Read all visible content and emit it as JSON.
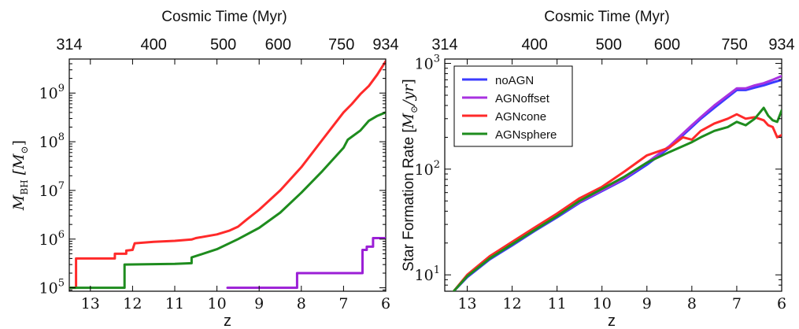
{
  "chart_data": [
    {
      "type": "line",
      "top_axis_label": "Cosmic Time (Myr)",
      "top_ticks": [
        {
          "label": "314",
          "z": 13.5
        },
        {
          "label": "400",
          "z": 11.5
        },
        {
          "label": "500",
          "z": 9.85
        },
        {
          "label": "600",
          "z": 8.55
        },
        {
          "label": "750",
          "z": 7.05
        },
        {
          "label": "934",
          "z": 6.0
        }
      ],
      "xlabel": "z",
      "ylabel_parts": [
        "M",
        "BH",
        " [M",
        "⊙",
        "]"
      ],
      "x_ticks": [
        "13",
        "12",
        "11",
        "10",
        "9",
        "8",
        "7",
        "6"
      ],
      "x_tick_values": [
        13,
        12,
        11,
        10,
        9,
        8,
        7,
        6
      ],
      "xlim": [
        13.5,
        6.0
      ],
      "y_scale": "log",
      "ylim": [
        85000,
        5000000000
      ],
      "y_ticks": [
        {
          "base": "10",
          "exp": "5",
          "value": 100000
        },
        {
          "base": "10",
          "exp": "6",
          "value": 1000000
        },
        {
          "base": "10",
          "exp": "7",
          "value": 10000000
        },
        {
          "base": "10",
          "exp": "8",
          "value": 100000000
        },
        {
          "base": "10",
          "exp": "9",
          "value": 1000000000
        }
      ],
      "series": [
        {
          "color": "#ff2a2a",
          "x": [
            13.5,
            13.34,
            13.34,
            12.42,
            12.42,
            12.15,
            12.15,
            12.0,
            11.95,
            11.5,
            11.0,
            10.6,
            10.5,
            10.0,
            9.7,
            9.5,
            9.3,
            9.0,
            8.5,
            8.0,
            7.5,
            7.0,
            6.8,
            6.6,
            6.4,
            6.2,
            6.0
          ],
          "y": [
            100000,
            100000,
            400000,
            400000,
            500000,
            500000,
            580000,
            600000,
            820000,
            880000,
            920000,
            980000,
            1050000,
            1250000,
            1500000,
            1800000,
            2500000,
            4000000,
            10000000,
            30000000,
            110000000,
            400000000,
            600000000,
            950000000,
            1400000000,
            2400000000,
            4500000000
          ]
        },
        {
          "color": "#1e8c1e",
          "x": [
            13.5,
            12.19,
            12.19,
            11.0,
            10.6,
            10.6,
            10.0,
            9.5,
            9.0,
            8.5,
            8.0,
            7.5,
            7.0,
            6.9,
            6.6,
            6.4,
            6.2,
            6.0
          ],
          "y": [
            100000,
            100000,
            300000,
            310000,
            320000,
            420000,
            620000,
            1000000,
            1700000,
            3500000,
            9000000,
            25000000,
            75000000,
            110000000,
            170000000,
            270000000,
            340000000,
            400000000
          ]
        },
        {
          "color": "#9b1fd6",
          "x": [
            9.75,
            8.1,
            8.1,
            6.55,
            6.55,
            6.45,
            6.45,
            6.3,
            6.3,
            6.0
          ],
          "y": [
            100000,
            100000,
            200000,
            200000,
            600000,
            600000,
            700000,
            700000,
            1050000,
            1050000
          ]
        }
      ]
    },
    {
      "type": "line",
      "top_axis_label": "Cosmic Time (Myr)",
      "top_ticks": [
        {
          "label": "314",
          "z": 13.5
        },
        {
          "label": "400",
          "z": 11.5
        },
        {
          "label": "500",
          "z": 9.85
        },
        {
          "label": "600",
          "z": 8.55
        },
        {
          "label": "750",
          "z": 7.05
        },
        {
          "label": "934",
          "z": 6.0
        }
      ],
      "xlabel": "z",
      "ylabel_parts": [
        "Star Formation Rate [",
        "M",
        "⊙",
        "/yr",
        "]"
      ],
      "x_ticks": [
        "13",
        "12",
        "11",
        "10",
        "9",
        "8",
        "7",
        "6"
      ],
      "x_tick_values": [
        13,
        12,
        11,
        10,
        9,
        8,
        7,
        6
      ],
      "xlim": [
        13.5,
        6.0
      ],
      "y_scale": "log",
      "ylim": [
        7,
        1100
      ],
      "y_ticks": [
        {
          "base": "10",
          "exp": "1",
          "value": 10
        },
        {
          "base": "10",
          "exp": "2",
          "value": 100
        },
        {
          "base": "10",
          "exp": "3",
          "value": 1000
        }
      ],
      "legend_position": "top-left",
      "series": [
        {
          "name": "noAGN",
          "color": "#3b3bff",
          "x": [
            13.3,
            13.0,
            12.5,
            12.0,
            11.5,
            11.0,
            10.5,
            10.0,
            9.5,
            9.0,
            8.5,
            8.0,
            7.8,
            7.5,
            7.2,
            7.0,
            6.8,
            6.6,
            6.4,
            6.2,
            6.0
          ],
          "y": [
            7,
            9.5,
            14,
            19,
            26,
            35,
            48,
            62,
            80,
            110,
            160,
            250,
            300,
            380,
            480,
            560,
            560,
            590,
            620,
            660,
            700
          ]
        },
        {
          "name": "AGNoffset",
          "color": "#a832e0",
          "x": [
            13.3,
            13.0,
            12.5,
            12.0,
            11.5,
            11.0,
            10.5,
            10.0,
            9.5,
            9.0,
            8.5,
            8.0,
            7.8,
            7.5,
            7.2,
            7.0,
            6.8,
            6.6,
            6.4,
            6.2,
            6.0
          ],
          "y": [
            7,
            9.8,
            14.5,
            19.5,
            26.5,
            36,
            49,
            63,
            82,
            115,
            165,
            260,
            310,
            400,
            500,
            580,
            580,
            620,
            650,
            700,
            760
          ]
        },
        {
          "name": "AGNcone",
          "color": "#ff2a2a",
          "x": [
            13.3,
            13.0,
            12.5,
            12.0,
            11.5,
            11.0,
            10.5,
            10.0,
            9.5,
            9.0,
            8.5,
            8.2,
            8.0,
            7.8,
            7.5,
            7.2,
            7.0,
            6.8,
            6.6,
            6.4,
            6.3,
            6.2,
            6.1,
            6.0
          ],
          "y": [
            7,
            10,
            15,
            20.5,
            28,
            38,
            53,
            68,
            95,
            135,
            160,
            200,
            190,
            230,
            270,
            300,
            330,
            300,
            310,
            290,
            260,
            250,
            200,
            210
          ]
        },
        {
          "name": "AGNsphere",
          "color": "#1e8c1e",
          "x": [
            13.3,
            13.0,
            12.5,
            12.0,
            11.5,
            11.0,
            10.5,
            10.0,
            9.5,
            9.0,
            8.5,
            8.0,
            7.8,
            7.5,
            7.2,
            7.0,
            6.8,
            6.6,
            6.4,
            6.3,
            6.2,
            6.1,
            6.0
          ],
          "y": [
            7,
            9.7,
            14.3,
            19.5,
            26.5,
            36,
            50,
            65,
            85,
            115,
            145,
            180,
            200,
            230,
            250,
            280,
            260,
            300,
            380,
            320,
            290,
            280,
            360
          ]
        }
      ]
    }
  ]
}
